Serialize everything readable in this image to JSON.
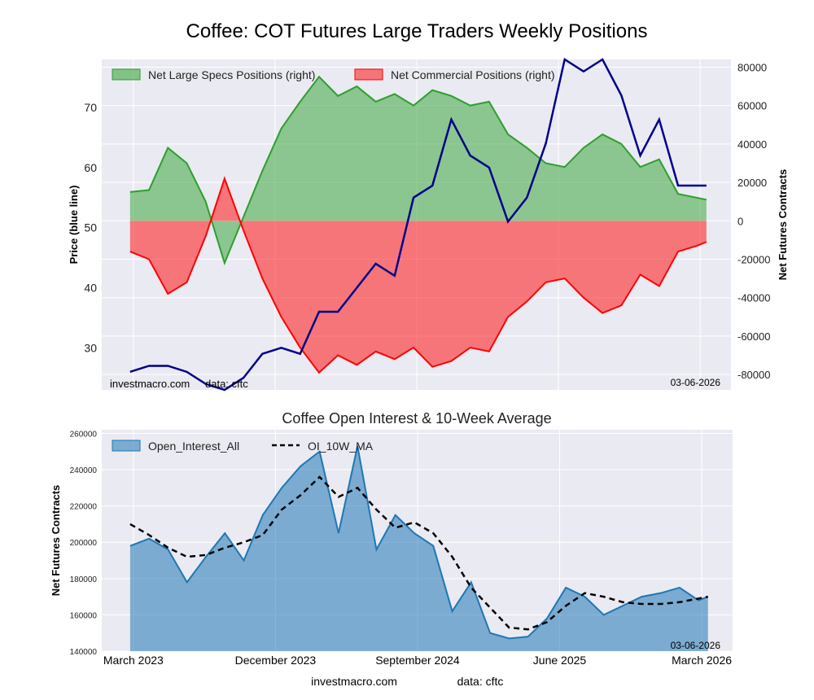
{
  "figure": {
    "title": "Coffee: COT Futures Large Traders Weekly Positions",
    "footer_left": "investmacro.com",
    "footer_right": "data: cftc"
  },
  "chart_data": [
    {
      "type": "area",
      "title": "Coffee: COT Futures Large Traders Weekly Positions",
      "ylabel": "Price (blue line)",
      "y2label": "Net Futures Contracts",
      "ylim": [
        23,
        78
      ],
      "y2lim": [
        -88000,
        84000
      ],
      "yticks": [
        30,
        40,
        50,
        60,
        70
      ],
      "y2ticks": [
        -80000,
        -60000,
        -40000,
        -20000,
        0,
        20000,
        40000,
        60000,
        80000
      ],
      "xlim": [
        2023.0,
        2026.33
      ],
      "legend_position": "top",
      "grid": true,
      "colors": {
        "specs": "#2ca02c",
        "commercial": "#ff0000",
        "price": "#00008b",
        "background": "#eaeaf2"
      },
      "watermark": "investmacro.com",
      "watermark2": "data: cftc",
      "date_stamp": "03-06-2026",
      "series": [
        {
          "name": "Net Large Specs Positions (right)",
          "x": [
            2023.15,
            2023.25,
            2023.35,
            2023.45,
            2023.55,
            2023.65,
            2023.75,
            2023.85,
            2023.95,
            2024.05,
            2024.15,
            2024.25,
            2024.35,
            2024.45,
            2024.55,
            2024.65,
            2024.75,
            2024.85,
            2024.95,
            2025.05,
            2025.15,
            2025.25,
            2025.35,
            2025.45,
            2025.55,
            2025.65,
            2025.75,
            2025.85,
            2025.95,
            2026.05,
            2026.15,
            2026.2
          ],
          "values": [
            15000,
            16000,
            38000,
            30000,
            10000,
            -22000,
            2000,
            26000,
            48000,
            62000,
            75000,
            65000,
            70000,
            62000,
            66000,
            60000,
            68000,
            65000,
            60000,
            62000,
            45000,
            38000,
            30000,
            28000,
            38000,
            45000,
            40000,
            28000,
            32000,
            14000,
            12000,
            11000
          ]
        },
        {
          "name": "Net Commercial Positions (right)",
          "x": [
            2023.15,
            2023.25,
            2023.35,
            2023.45,
            2023.55,
            2023.65,
            2023.75,
            2023.85,
            2023.95,
            2024.05,
            2024.15,
            2024.25,
            2024.35,
            2024.45,
            2024.55,
            2024.65,
            2024.75,
            2024.85,
            2024.95,
            2025.05,
            2025.15,
            2025.25,
            2025.35,
            2025.45,
            2025.55,
            2025.65,
            2025.75,
            2025.85,
            2025.95,
            2026.05,
            2026.15,
            2026.2
          ],
          "values": [
            -16000,
            -20000,
            -38000,
            -32000,
            -8000,
            22000,
            -5000,
            -30000,
            -50000,
            -66000,
            -79000,
            -70000,
            -75000,
            -68000,
            -72000,
            -66000,
            -76000,
            -73000,
            -66000,
            -68000,
            -50000,
            -42000,
            -32000,
            -30000,
            -40000,
            -48000,
            -44000,
            -28000,
            -34000,
            -16000,
            -13000,
            -11000
          ]
        },
        {
          "name": "Price",
          "x": [
            2023.15,
            2023.25,
            2023.35,
            2023.45,
            2023.55,
            2023.65,
            2023.75,
            2023.85,
            2023.95,
            2024.05,
            2024.15,
            2024.25,
            2024.35,
            2024.45,
            2024.55,
            2024.65,
            2024.75,
            2024.85,
            2024.95,
            2025.05,
            2025.15,
            2025.25,
            2025.35,
            2025.45,
            2025.55,
            2025.65,
            2025.75,
            2025.85,
            2025.95,
            2026.05,
            2026.15,
            2026.2
          ],
          "values": [
            26,
            27,
            27,
            26,
            24,
            23,
            25,
            29,
            30,
            29,
            36,
            36,
            40,
            44,
            42,
            55,
            57,
            68,
            62,
            60,
            51,
            55,
            64,
            78,
            76,
            78,
            72,
            62,
            68,
            57,
            57,
            57
          ]
        }
      ]
    },
    {
      "type": "area",
      "title": "Coffee Open Interest & 10-Week Average",
      "ylabel": "Net Futures Contracts",
      "ylim": [
        140000,
        262000
      ],
      "yticks": [
        140000,
        160000,
        180000,
        200000,
        220000,
        240000,
        260000
      ],
      "xlim": [
        2023.0,
        2026.33
      ],
      "xticks": [
        2023.167,
        2023.917,
        2024.667,
        2025.417,
        2026.167
      ],
      "xticklabels": [
        "March 2023",
        "December 2023",
        "September 2024",
        "June 2025",
        "March 2026"
      ],
      "legend_position": "top-left",
      "grid": true,
      "colors": {
        "oi": "#1f77b4",
        "ma": "#000000",
        "background": "#eaeaf2"
      },
      "date_stamp": "03-06-2026",
      "series": [
        {
          "name": "Open_Interest_All",
          "x": [
            2023.15,
            2023.25,
            2023.35,
            2023.45,
            2023.55,
            2023.65,
            2023.75,
            2023.85,
            2023.95,
            2024.05,
            2024.15,
            2024.25,
            2024.35,
            2024.45,
            2024.55,
            2024.65,
            2024.75,
            2024.85,
            2024.95,
            2025.05,
            2025.15,
            2025.25,
            2025.35,
            2025.45,
            2025.55,
            2025.65,
            2025.75,
            2025.85,
            2025.95,
            2026.05,
            2026.15,
            2026.2
          ],
          "values": [
            198000,
            202000,
            196000,
            178000,
            192000,
            205000,
            190000,
            215000,
            230000,
            242000,
            250000,
            205000,
            253000,
            196000,
            215000,
            205000,
            198000,
            162000,
            178000,
            150000,
            147000,
            148000,
            158000,
            175000,
            170000,
            160000,
            165000,
            170000,
            172000,
            175000,
            168000,
            170000
          ]
        },
        {
          "name": "OI_10W_MA",
          "x": [
            2023.15,
            2023.25,
            2023.35,
            2023.45,
            2023.55,
            2023.65,
            2023.75,
            2023.85,
            2023.95,
            2024.05,
            2024.15,
            2024.25,
            2024.35,
            2024.45,
            2024.55,
            2024.65,
            2024.75,
            2024.85,
            2024.95,
            2025.05,
            2025.15,
            2025.25,
            2025.35,
            2025.45,
            2025.55,
            2025.65,
            2025.75,
            2025.85,
            2025.95,
            2026.05,
            2026.15,
            2026.2
          ],
          "values": [
            210000,
            204000,
            197000,
            192000,
            193000,
            197000,
            200000,
            204000,
            218000,
            226000,
            236000,
            225000,
            230000,
            218000,
            208000,
            211000,
            205000,
            192000,
            175000,
            164000,
            153000,
            152000,
            156000,
            165000,
            172000,
            170000,
            167000,
            166000,
            166000,
            167000,
            169000,
            170000
          ]
        }
      ]
    }
  ]
}
